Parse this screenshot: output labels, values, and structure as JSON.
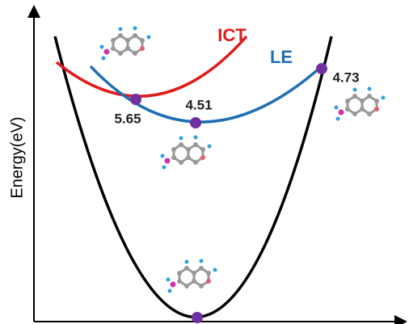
{
  "axis": {
    "y_label": "Energy(eV)"
  },
  "curves": {
    "ict": {
      "label": "ICT"
    },
    "le": {
      "label": "LE"
    }
  },
  "points": [
    {
      "label": "5.65"
    },
    {
      "label": "4.51"
    },
    {
      "label": "4.73"
    }
  ]
}
